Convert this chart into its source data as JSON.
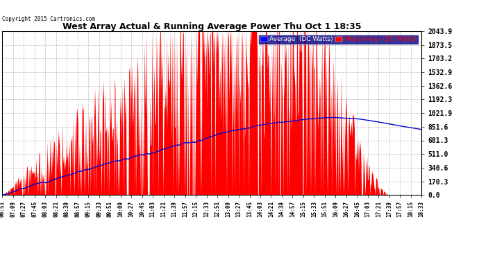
{
  "title": "West Array Actual & Running Average Power Thu Oct 1 18:35",
  "copyright": "Copyright 2015 Cartronics.com",
  "legend_avg": "Average  (DC Watts)",
  "legend_west": "West Array  (DC Watts)",
  "ymin": 0.0,
  "ymax": 2043.9,
  "yticks": [
    0.0,
    170.3,
    340.6,
    511.0,
    681.3,
    851.6,
    1021.9,
    1192.3,
    1362.6,
    1532.9,
    1703.2,
    1873.5,
    2043.9
  ],
  "bg_color": "#ffffff",
  "plot_bg_color": "#ffffff",
  "grid_color": "#aaaaaa",
  "bar_color": "#ff0000",
  "avg_line_color": "#0000cc",
  "title_color": "#000000",
  "tick_label_color": "#000000",
  "time_labels": [
    "06:51",
    "07:09",
    "07:27",
    "07:45",
    "08:03",
    "08:21",
    "08:39",
    "08:57",
    "09:15",
    "09:33",
    "09:51",
    "10:09",
    "10:27",
    "10:45",
    "11:03",
    "11:21",
    "11:39",
    "11:57",
    "12:15",
    "12:33",
    "12:51",
    "13:09",
    "13:27",
    "13:45",
    "14:03",
    "14:21",
    "14:39",
    "14:57",
    "15:15",
    "15:33",
    "15:51",
    "16:09",
    "16:27",
    "16:45",
    "17:03",
    "17:21",
    "17:39",
    "17:57",
    "18:15",
    "18:33"
  ],
  "n_points": 700
}
